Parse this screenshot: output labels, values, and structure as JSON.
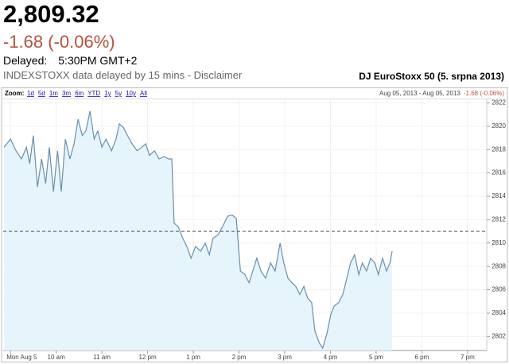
{
  "header": {
    "price": "2,809.32",
    "change": "-1.68 (-0.06%)",
    "delayed_label": "Delayed:",
    "time": "5:30PM GMT+2",
    "note": "INDEXSTOXX data delayed by 15 mins - Disclaimer",
    "index_title": "DJ EuroStoxx 50 (5. srpna 2013)"
  },
  "toolbar": {
    "zoom": "Zoom:",
    "ranges": [
      "1d",
      "5d",
      "1m",
      "3m",
      "6m",
      "YTD",
      "1y",
      "5y",
      "10y",
      "All"
    ],
    "range_info": "Aug 05, 2013 - Aug 05, 2013",
    "range_change": "-1.68 (-0.06%)"
  },
  "chart_data": {
    "type": "line",
    "x": [
      8.86,
      9.0,
      9.12,
      9.24,
      9.35,
      9.42,
      9.5,
      9.59,
      9.68,
      9.77,
      9.85,
      9.94,
      10.03,
      10.11,
      10.2,
      10.3,
      10.39,
      10.48,
      10.57,
      10.65,
      10.74,
      10.83,
      10.91,
      11.0,
      11.09,
      11.21,
      11.31,
      11.38,
      11.47,
      11.56,
      11.66,
      11.77,
      11.87,
      11.96,
      12.04,
      12.15,
      12.25,
      12.36,
      12.46,
      12.53,
      12.58,
      12.67,
      12.77,
      12.86,
      12.95,
      13.05,
      13.16,
      13.26,
      13.35,
      13.43,
      13.54,
      13.64,
      13.75,
      13.85,
      13.94,
      14.03,
      14.13,
      14.22,
      14.3,
      14.39,
      14.48,
      14.58,
      14.69,
      14.79,
      14.9,
      14.98,
      15.07,
      15.16,
      15.24,
      15.33,
      15.42,
      15.5,
      15.59,
      15.66,
      15.75,
      15.83,
      15.92,
      16.01,
      16.08,
      16.18,
      16.27,
      16.36,
      16.44,
      16.53,
      16.62,
      16.7,
      16.79,
      16.88,
      16.97,
      17.05,
      17.14,
      17.23,
      17.3,
      17.35
    ],
    "series": [
      {
        "color": "#6a8fad",
        "fill": "#e6f4fb",
        "values": [
          2818.2,
          2818.9,
          2817.9,
          2817.2,
          2818.2,
          2816.8,
          2819.2,
          2814.8,
          2817.2,
          2815.1,
          2818.2,
          2814.4,
          2817.9,
          2814.4,
          2818.9,
          2817.2,
          2818.5,
          2820.6,
          2819.2,
          2819.6,
          2821.3,
          2818.9,
          2819.6,
          2818.2,
          2818.9,
          2817.9,
          2818.9,
          2820.2,
          2819.9,
          2819.2,
          2818.5,
          2817.9,
          2818.2,
          2818.5,
          2817.5,
          2817.9,
          2817.2,
          2817.4,
          2817.2,
          2817.2,
          2811.7,
          2811.4,
          2810.4,
          2809.7,
          2808.7,
          2809.7,
          2809.3,
          2810.0,
          2809.0,
          2810.4,
          2810.7,
          2811.4,
          2812.3,
          2812.4,
          2812.1,
          2807.6,
          2807.3,
          2806.6,
          2807.6,
          2808.7,
          2807.6,
          2807.0,
          2808.3,
          2807.6,
          2810.0,
          2808.3,
          2807.0,
          2806.6,
          2806.3,
          2805.6,
          2806.3,
          2805.3,
          2804.9,
          2802.5,
          2801.5,
          2801.0,
          2802.2,
          2803.9,
          2804.6,
          2804.9,
          2805.6,
          2807.0,
          2808.3,
          2809.0,
          2807.3,
          2808.3,
          2807.6,
          2808.7,
          2808.3,
          2807.3,
          2808.7,
          2807.6,
          2808.3,
          2809.3
        ]
      }
    ],
    "previous_close": 2811.0,
    "xlim": [
      8.84,
      19.42
    ],
    "ylim": [
      2800.8,
      2822.3
    ],
    "xticks": [
      {
        "value": 9,
        "label": "Mon Aug 5"
      },
      {
        "value": 10,
        "label": "10 am"
      },
      {
        "value": 11,
        "label": "11 am"
      },
      {
        "value": 12,
        "label": "12 pm"
      },
      {
        "value": 13,
        "label": "1 pm"
      },
      {
        "value": 14,
        "label": "2 pm"
      },
      {
        "value": 15,
        "label": "3 pm"
      },
      {
        "value": 16,
        "label": "4 pm"
      },
      {
        "value": 17,
        "label": "5 pm"
      },
      {
        "value": 18,
        "label": "6 pm"
      },
      {
        "value": 19,
        "label": "7 pm"
      }
    ],
    "yticks": [
      2802,
      2804,
      2806,
      2808,
      2810,
      2812,
      2814,
      2816,
      2818,
      2820,
      2822
    ],
    "grid": true
  }
}
